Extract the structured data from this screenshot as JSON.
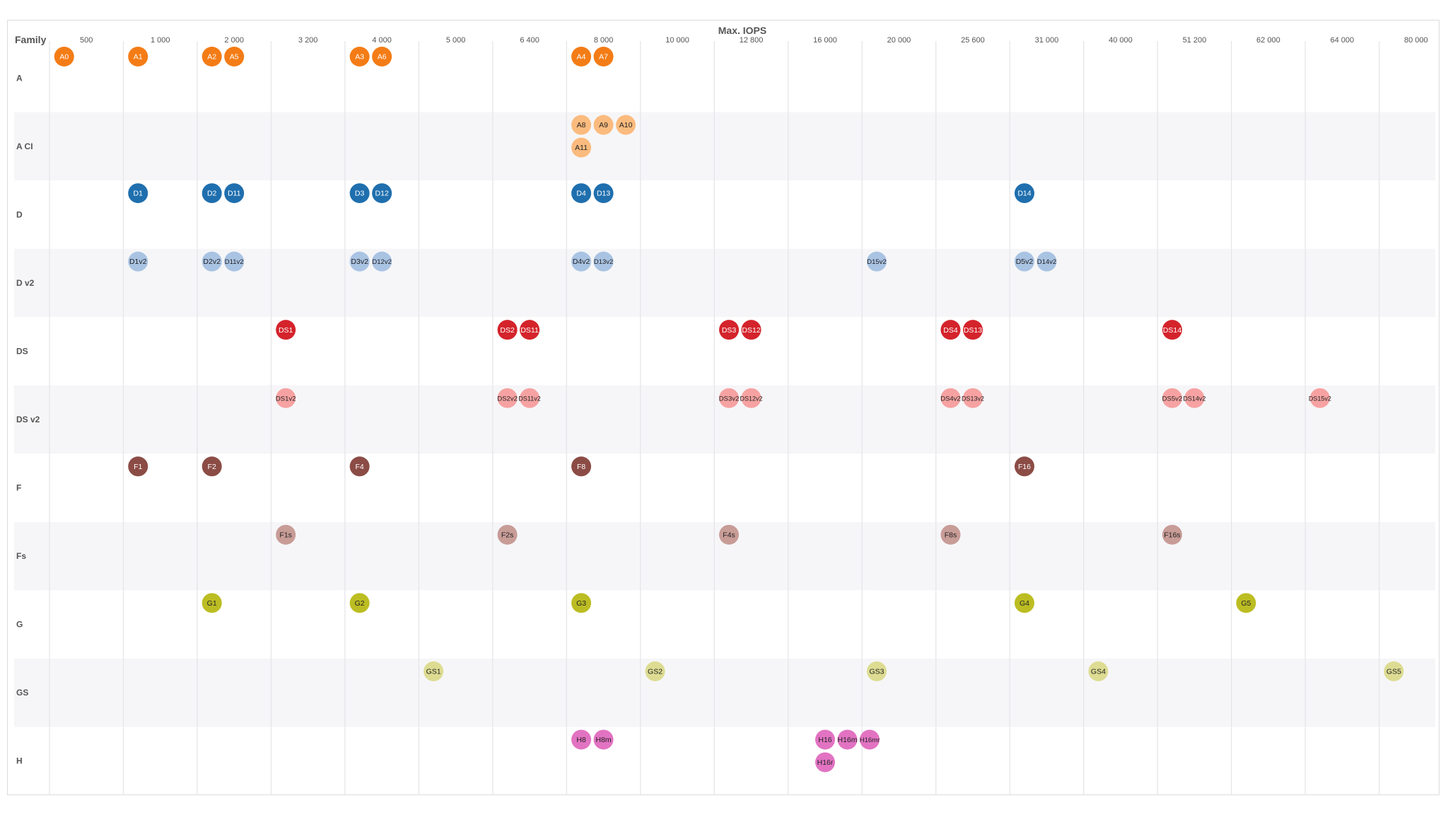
{
  "chart_data": {
    "type": "scatter",
    "title": "Max. IOPS",
    "y_header": "Family",
    "x_ticks": [
      "500",
      "1 000",
      "2 000",
      "3 200",
      "4 000",
      "5 000",
      "6 400",
      "8 000",
      "10 000",
      "12 800",
      "16 000",
      "20 000",
      "25 600",
      "31 000",
      "40 000",
      "51 200",
      "62 000",
      "64 000",
      "80 000"
    ],
    "families": [
      {
        "name": "A",
        "color": "#f47c16",
        "text_color": "#ffffff",
        "points": [
          {
            "label": "A0",
            "tick": 0,
            "slot": -1,
            "row": 0
          },
          {
            "label": "A1",
            "tick": 1,
            "slot": -1,
            "row": 0
          },
          {
            "label": "A2",
            "tick": 2,
            "slot": -1,
            "row": 0
          },
          {
            "label": "A5",
            "tick": 2,
            "slot": 0,
            "row": 0
          },
          {
            "label": "A3",
            "tick": 4,
            "slot": -1,
            "row": 0
          },
          {
            "label": "A6",
            "tick": 4,
            "slot": 0,
            "row": 0
          },
          {
            "label": "A4",
            "tick": 7,
            "slot": -1,
            "row": 0
          },
          {
            "label": "A7",
            "tick": 7,
            "slot": 0,
            "row": 0
          }
        ]
      },
      {
        "name": "A CI",
        "color": "#fbbb7e",
        "text_color": "#222222",
        "points": [
          {
            "label": "A8",
            "tick": 7,
            "slot": -1,
            "row": 0
          },
          {
            "label": "A9",
            "tick": 7,
            "slot": 0,
            "row": 0
          },
          {
            "label": "A10",
            "tick": 7,
            "slot": 1,
            "row": 0
          },
          {
            "label": "A11",
            "tick": 7,
            "slot": -1,
            "row": 1
          }
        ]
      },
      {
        "name": "D",
        "color": "#1f6fae",
        "text_color": "#ffffff",
        "points": [
          {
            "label": "D1",
            "tick": 1,
            "slot": -1,
            "row": 0
          },
          {
            "label": "D2",
            "tick": 2,
            "slot": -1,
            "row": 0
          },
          {
            "label": "D11",
            "tick": 2,
            "slot": 0,
            "row": 0
          },
          {
            "label": "D3",
            "tick": 4,
            "slot": -1,
            "row": 0
          },
          {
            "label": "D12",
            "tick": 4,
            "slot": 0,
            "row": 0
          },
          {
            "label": "D4",
            "tick": 7,
            "slot": -1,
            "row": 0
          },
          {
            "label": "D13",
            "tick": 7,
            "slot": 0,
            "row": 0
          },
          {
            "label": "D14",
            "tick": 13,
            "slot": -1,
            "row": 0
          }
        ]
      },
      {
        "name": "D v2",
        "color": "#a9c3e3",
        "text_color": "#222222",
        "points": [
          {
            "label": "D1v2",
            "tick": 1,
            "slot": -1,
            "row": 0
          },
          {
            "label": "D2v2",
            "tick": 2,
            "slot": -1,
            "row": 0
          },
          {
            "label": "D11v2",
            "tick": 2,
            "slot": 0,
            "row": 0
          },
          {
            "label": "D3v2",
            "tick": 4,
            "slot": -1,
            "row": 0
          },
          {
            "label": "D12v2",
            "tick": 4,
            "slot": 0,
            "row": 0
          },
          {
            "label": "D4v2",
            "tick": 7,
            "slot": -1,
            "row": 0
          },
          {
            "label": "D13v2",
            "tick": 7,
            "slot": 0,
            "row": 0
          },
          {
            "label": "D15v2",
            "tick": 11,
            "slot": -1,
            "row": 0
          },
          {
            "label": "D5v2",
            "tick": 13,
            "slot": -1,
            "row": 0
          },
          {
            "label": "D14v2",
            "tick": 13,
            "slot": 0,
            "row": 0
          }
        ]
      },
      {
        "name": "DS",
        "color": "#d4232b",
        "text_color": "#ffffff",
        "points": [
          {
            "label": "DS1",
            "tick": 3,
            "slot": -1,
            "row": 0
          },
          {
            "label": "DS2",
            "tick": 6,
            "slot": -1,
            "row": 0
          },
          {
            "label": "DS11",
            "tick": 6,
            "slot": 0,
            "row": 0
          },
          {
            "label": "DS3",
            "tick": 9,
            "slot": -1,
            "row": 0
          },
          {
            "label": "DS12",
            "tick": 9,
            "slot": 0,
            "row": 0
          },
          {
            "label": "DS4",
            "tick": 12,
            "slot": -1,
            "row": 0
          },
          {
            "label": "DS13",
            "tick": 12,
            "slot": 0,
            "row": 0
          },
          {
            "label": "DS14",
            "tick": 15,
            "slot": -1,
            "row": 0
          }
        ]
      },
      {
        "name": "DS v2",
        "color": "#f7a2a2",
        "text_color": "#222222",
        "points": [
          {
            "label": "DS1v2",
            "tick": 3,
            "slot": -1,
            "row": 0
          },
          {
            "label": "DS2v2",
            "tick": 6,
            "slot": -1,
            "row": 0
          },
          {
            "label": "DS11v2",
            "tick": 6,
            "slot": 0,
            "row": 0
          },
          {
            "label": "DS3v2",
            "tick": 9,
            "slot": -1,
            "row": 0
          },
          {
            "label": "DS12v2",
            "tick": 9,
            "slot": 0,
            "row": 0
          },
          {
            "label": "DS4v2",
            "tick": 12,
            "slot": -1,
            "row": 0
          },
          {
            "label": "DS13v2",
            "tick": 12,
            "slot": 0,
            "row": 0
          },
          {
            "label": "DS5v2",
            "tick": 15,
            "slot": -1,
            "row": 0
          },
          {
            "label": "DS14v2",
            "tick": 15,
            "slot": 0,
            "row": 0
          },
          {
            "label": "DS15v2",
            "tick": 17,
            "slot": -1,
            "row": 0
          }
        ]
      },
      {
        "name": "F",
        "color": "#8b4c45",
        "text_color": "#ffffff",
        "points": [
          {
            "label": "F1",
            "tick": 1,
            "slot": -1,
            "row": 0
          },
          {
            "label": "F2",
            "tick": 2,
            "slot": -1,
            "row": 0
          },
          {
            "label": "F4",
            "tick": 4,
            "slot": -1,
            "row": 0
          },
          {
            "label": "F8",
            "tick": 7,
            "slot": -1,
            "row": 0
          },
          {
            "label": "F16",
            "tick": 13,
            "slot": -1,
            "row": 0
          }
        ]
      },
      {
        "name": "Fs",
        "color": "#c89c97",
        "text_color": "#222222",
        "points": [
          {
            "label": "F1s",
            "tick": 3,
            "slot": -1,
            "row": 0
          },
          {
            "label": "F2s",
            "tick": 6,
            "slot": -1,
            "row": 0
          },
          {
            "label": "F4s",
            "tick": 9,
            "slot": -1,
            "row": 0
          },
          {
            "label": "F8s",
            "tick": 12,
            "slot": -1,
            "row": 0
          },
          {
            "label": "F16s",
            "tick": 15,
            "slot": -1,
            "row": 0
          }
        ]
      },
      {
        "name": "G",
        "color": "#bcbd22",
        "text_color": "#222222",
        "points": [
          {
            "label": "G1",
            "tick": 2,
            "slot": -1,
            "row": 0
          },
          {
            "label": "G2",
            "tick": 4,
            "slot": -1,
            "row": 0
          },
          {
            "label": "G3",
            "tick": 7,
            "slot": -1,
            "row": 0
          },
          {
            "label": "G4",
            "tick": 13,
            "slot": -1,
            "row": 0
          },
          {
            "label": "G5",
            "tick": 16,
            "slot": -1,
            "row": 0
          }
        ]
      },
      {
        "name": "GS",
        "color": "#dddc92",
        "text_color": "#222222",
        "points": [
          {
            "label": "GS1",
            "tick": 5,
            "slot": -1,
            "row": 0
          },
          {
            "label": "GS2",
            "tick": 8,
            "slot": -1,
            "row": 0
          },
          {
            "label": "GS3",
            "tick": 11,
            "slot": -1,
            "row": 0
          },
          {
            "label": "GS4",
            "tick": 14,
            "slot": -1,
            "row": 0
          },
          {
            "label": "GS5",
            "tick": 18,
            "slot": -1,
            "row": 0
          }
        ]
      },
      {
        "name": "H",
        "color": "#e273c2",
        "text_color": "#222222",
        "points": [
          {
            "label": "H8",
            "tick": 7,
            "slot": -1,
            "row": 0
          },
          {
            "label": "H8m",
            "tick": 7,
            "slot": 0,
            "row": 0
          },
          {
            "label": "H16",
            "tick": 10,
            "slot": 0,
            "row": 0
          },
          {
            "label": "H16m",
            "tick": 10,
            "slot": 1,
            "row": 0
          },
          {
            "label": "H16mr",
            "tick": 10,
            "slot": 2,
            "row": 0
          },
          {
            "label": "H16r",
            "tick": 10,
            "slot": 0,
            "row": 1
          }
        ]
      }
    ]
  }
}
